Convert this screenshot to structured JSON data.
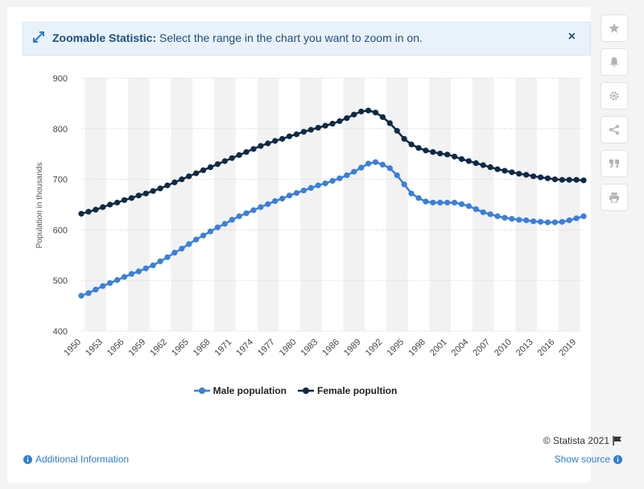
{
  "banner": {
    "title": "Zoomable Statistic:",
    "text": " Select the range in the chart you want to zoom in on.",
    "close_label": "×"
  },
  "sidebar": {
    "icons": [
      "star-icon",
      "bell-icon",
      "gear-icon",
      "share-icon",
      "quote-icon",
      "print-icon"
    ]
  },
  "footer": {
    "copyright": "© Statista 2021",
    "additional_info": "Additional Information",
    "show_source": "Show source"
  },
  "colors": {
    "male": "#3a7fdc",
    "female": "#0f2a45",
    "grid": "#cfcfcf",
    "band": "#f2f2f2"
  },
  "chart_data": {
    "type": "line",
    "ylabel": "Population in thousands",
    "xlabel": "",
    "ylim": [
      400,
      900
    ],
    "yticks": [
      400,
      500,
      600,
      700,
      800,
      900
    ],
    "xlim": [
      1950,
      2020
    ],
    "xticks": [
      1950,
      1953,
      1956,
      1959,
      1962,
      1965,
      1968,
      1971,
      1974,
      1977,
      1980,
      1983,
      1986,
      1989,
      1992,
      1995,
      1998,
      2001,
      2004,
      2007,
      2010,
      2013,
      2016,
      2019
    ],
    "legend_position": "bottom",
    "x": [
      1950,
      1951,
      1952,
      1953,
      1954,
      1955,
      1956,
      1957,
      1958,
      1959,
      1960,
      1961,
      1962,
      1963,
      1964,
      1965,
      1966,
      1967,
      1968,
      1969,
      1970,
      1971,
      1972,
      1973,
      1974,
      1975,
      1976,
      1977,
      1978,
      1979,
      1980,
      1981,
      1982,
      1983,
      1984,
      1985,
      1986,
      1987,
      1988,
      1989,
      1990,
      1991,
      1992,
      1993,
      1994,
      1995,
      1996,
      1997,
      1998,
      1999,
      2000,
      2001,
      2002,
      2003,
      2004,
      2005,
      2006,
      2007,
      2008,
      2009,
      2010,
      2011,
      2012,
      2013,
      2014,
      2015,
      2016,
      2017,
      2018,
      2019,
      2020
    ],
    "series": [
      {
        "name": "Male population",
        "values": [
          470,
          475,
          482,
          489,
          495,
          501,
          507,
          513,
          518,
          524,
          530,
          538,
          546,
          555,
          563,
          572,
          581,
          589,
          597,
          605,
          612,
          620,
          627,
          633,
          639,
          645,
          651,
          657,
          662,
          668,
          673,
          678,
          683,
          688,
          692,
          697,
          702,
          708,
          715,
          723,
          731,
          734,
          729,
          722,
          708,
          690,
          672,
          663,
          656,
          654,
          654,
          654,
          654,
          651,
          647,
          641,
          635,
          631,
          627,
          624,
          622,
          620,
          619,
          617,
          616,
          615,
          615,
          616,
          619,
          623,
          627
        ]
      },
      {
        "name": "Female popultion",
        "values": [
          632,
          636,
          640,
          645,
          650,
          654,
          659,
          663,
          668,
          672,
          677,
          682,
          688,
          694,
          700,
          706,
          712,
          718,
          724,
          730,
          736,
          742,
          748,
          754,
          760,
          766,
          771,
          776,
          780,
          785,
          789,
          794,
          798,
          802,
          806,
          810,
          815,
          821,
          828,
          834,
          836,
          832,
          823,
          811,
          796,
          780,
          769,
          762,
          757,
          754,
          751,
          749,
          745,
          740,
          736,
          732,
          728,
          724,
          720,
          717,
          714,
          711,
          709,
          706,
          704,
          702,
          700,
          699,
          699,
          699,
          698
        ]
      }
    ]
  }
}
